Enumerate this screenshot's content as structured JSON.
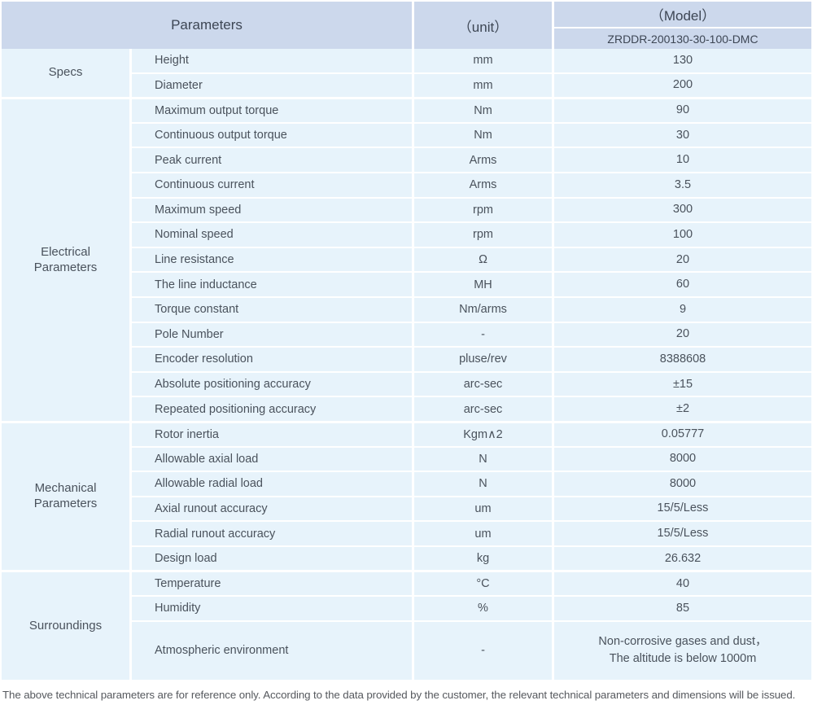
{
  "header": {
    "parameters": "Parameters",
    "unit": "（unit）",
    "model": "（Model）",
    "model_code": "ZRDDR-200130-30-100-DMC"
  },
  "sections": [
    {
      "label": "Specs",
      "rows": [
        {
          "param": "Height",
          "unit": "mm",
          "value": "130"
        },
        {
          "param": "Diameter",
          "unit": "mm",
          "value": "200"
        }
      ]
    },
    {
      "label": "Electrical\nParameters",
      "rows": [
        {
          "param": "Maximum output torque",
          "unit": "Nm",
          "value": "90"
        },
        {
          "param": "Continuous output torque",
          "unit": "Nm",
          "value": "30"
        },
        {
          "param": "Peak current",
          "unit": "Arms",
          "value": "10"
        },
        {
          "param": "Continuous current",
          "unit": "Arms",
          "value": "3.5"
        },
        {
          "param": "Maximum speed",
          "unit": "rpm",
          "value": "300"
        },
        {
          "param": "Nominal speed",
          "unit": "rpm",
          "value": "100"
        },
        {
          "param": "Line resistance",
          "unit": "Ω",
          "value": "20"
        },
        {
          "param": "The line inductance",
          "unit": "MH",
          "value": "60"
        },
        {
          "param": "Torque constant",
          "unit": "Nm/arms",
          "value": "9"
        },
        {
          "param": "Pole Number",
          "unit": "-",
          "value": "20"
        },
        {
          "param": "Encoder resolution",
          "unit": "pluse/rev",
          "value": "8388608"
        },
        {
          "param": "Absolute positioning accuracy",
          "unit": "arc-sec",
          "value": "±15"
        },
        {
          "param": "Repeated positioning accuracy",
          "unit": "arc-sec",
          "value": "±2"
        }
      ]
    },
    {
      "label": "Mechanical\nParameters",
      "rows": [
        {
          "param": "Rotor inertia",
          "unit": "Kgm∧2",
          "value": "0.05777"
        },
        {
          "param": "Allowable axial load",
          "unit": "N",
          "value": "8000"
        },
        {
          "param": "Allowable radial load",
          "unit": "N",
          "value": "8000"
        },
        {
          "param": "Axial runout accuracy",
          "unit": "um",
          "value": "15/5/Less"
        },
        {
          "param": "Radial runout accuracy",
          "unit": "um",
          "value": "15/5/Less"
        },
        {
          "param": "Design load",
          "unit": "kg",
          "value": "26.632"
        }
      ]
    },
    {
      "label": "Surroundings",
      "rows": [
        {
          "param": "Temperature",
          "unit": "°C",
          "value": "40"
        },
        {
          "param": "Humidity",
          "unit": "%",
          "value": "85"
        },
        {
          "param": "Atmospheric environment",
          "unit": "-",
          "value": "Non-corrosive gases and dust，\nThe altitude is below 1000m"
        }
      ]
    }
  ],
  "footer_note": "The above technical parameters are for reference only. According to the data provided by the customer, the relevant technical parameters and dimensions will be issued.",
  "colors": {
    "header_bg": "#ccd8ec",
    "row_bg": "#e7f3fb",
    "border": "#ffffff",
    "text": "#4a525c"
  }
}
